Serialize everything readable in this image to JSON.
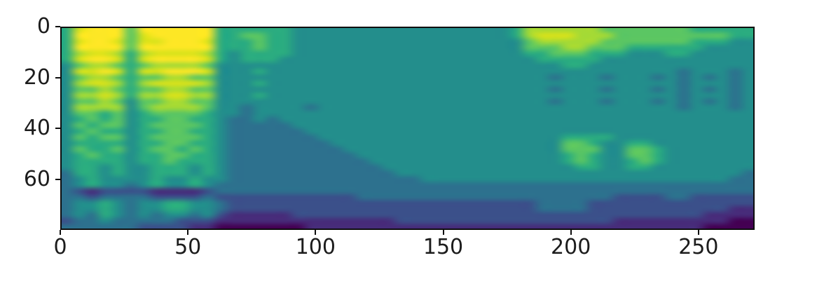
{
  "figure": {
    "background": "#ffffff",
    "spine_color": "#0e0e0e",
    "tick_color": "#0e0e0e",
    "label_color": "#1c1c1c"
  },
  "chart_data": {
    "type": "heatmap",
    "title": "",
    "xlabel": "",
    "ylabel": "",
    "legend": "none",
    "grid_lines": false,
    "x_ticks": [
      0,
      50,
      100,
      150,
      200,
      250
    ],
    "y_ticks": [
      0,
      20,
      40,
      60
    ],
    "x_range": [
      0,
      272
    ],
    "y_range": [
      0,
      80
    ],
    "y_inverted": true,
    "colormap": "viridis",
    "colormap_stops": [
      "#440154",
      "#482878",
      "#3e4989",
      "#31688e",
      "#26828e",
      "#1f9e89",
      "#35b779",
      "#6ece58",
      "#b5de2b",
      "#dce319",
      "#fde725"
    ],
    "value_levels": [
      0,
      9
    ],
    "grid_encoding": "34 rows x 54 cols of intensity digits 0-9 (0 = minimum / dark purple, 9 = maximum / yellow). Rows span y=0 (top) to y=80 (bottom); columns span x=0 (left) to x=272 (right). Depicts a mel-spectrogram: bright harmonic bands at x=3-58 in two bursts separated at x~22-27, a dark notch band at y~63-67 under the bursts, a bright green-yellow blob at top for x~180-250, and dark low-energy purple along the bottom edge.",
    "grid": [
      "589996999999555555444444444444444445777777666666655555",
      "599996899999556655444444444444444445788877766666666655",
      "589986889998555655444444444444444444677777666666655544",
      "599996999999555655444444444444444444666776665555554444",
      "578875788887545555444444444444444444556665554445544444",
      "589985899998545554444444444444444444455555444444444444",
      "467765677776444444444444444444444444444554444444444444",
      "488985889998444544444444444444444444444444444444344434",
      "467765667766444444444444444444444444443444344434343434",
      "478875788887444544444444444444444444444444444444344434",
      "466765667766444444444444444444444444443444344434343434",
      "477875778877444544444444444444444444444444444444344434",
      "466764667766444444444444444444444444443444344434343434",
      "477774677776443444434444444444444444444444444444344434",
      "466564566665443444444444444444444444444444444444444444",
      "456564556655433434444444444444444444444444444444444444",
      "465664566665433333444444444444444444444444444444444444",
      "456554556655433333344444444444444444444444444444444444",
      "465664566665433333334444444444444444444555544444444444",
      "455554556655433333333444444444444444444665445544444444",
      "465564566565433333333344444444444444444666446654444444",
      "456554556655433333333334444444444444444565446654444444",
      "455554556555433333333333444444444444444565445654444444",
      "455454455545433333333333344444444444444455445544444444",
      "355454455545433333333333334444444444444444444444444443",
      "345444454454433333333333333344444444444444444444444433",
      "345443454454333333333333333333333333333333333333333333",
      "321222211112333333333333333333333333333333333333333333",
      "332333322223222222222223333333333333333333322223322222",
      "344543445544322222222222222222222222233332222222222222",
      "344543445544322222222222222222222222233332222222222211",
      "343543434434211111222222222222222222222222222222221111",
      "233433333222111111111111112222222222222222211111111100",
      "333333222211000000011111111111111111111111111111110000"
    ]
  }
}
